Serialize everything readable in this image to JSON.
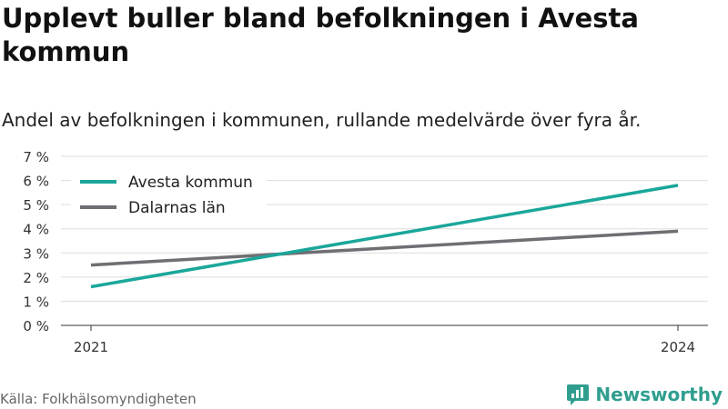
{
  "title": "Upplevt buller bland befolkningen i Avesta kommun",
  "subtitle": "Andel av befolkningen i kommunen, rullande medelvärde över fyra år.",
  "source": "Källa: Folkhälsomyndigheten",
  "brand": {
    "name": "Newsworthy",
    "logo_icon": "newsworthy-logo-icon",
    "color": "#2f9e8f"
  },
  "chart_data": {
    "type": "line",
    "x": [
      "2021",
      "2024"
    ],
    "xticks": [
      "2021",
      "2024"
    ],
    "series": [
      {
        "name": "Avesta kommun",
        "color": "#1aa79a",
        "values": [
          1.6,
          5.8
        ]
      },
      {
        "name": "Dalarnas län",
        "color": "#6e6e73",
        "values": [
          2.5,
          3.9
        ]
      }
    ],
    "ylim": [
      0,
      7
    ],
    "yticks": [
      "0 %",
      "1 %",
      "2 %",
      "3 %",
      "4 %",
      "5 %",
      "6 %",
      "7 %"
    ],
    "grid": true,
    "legend": "top-left"
  }
}
